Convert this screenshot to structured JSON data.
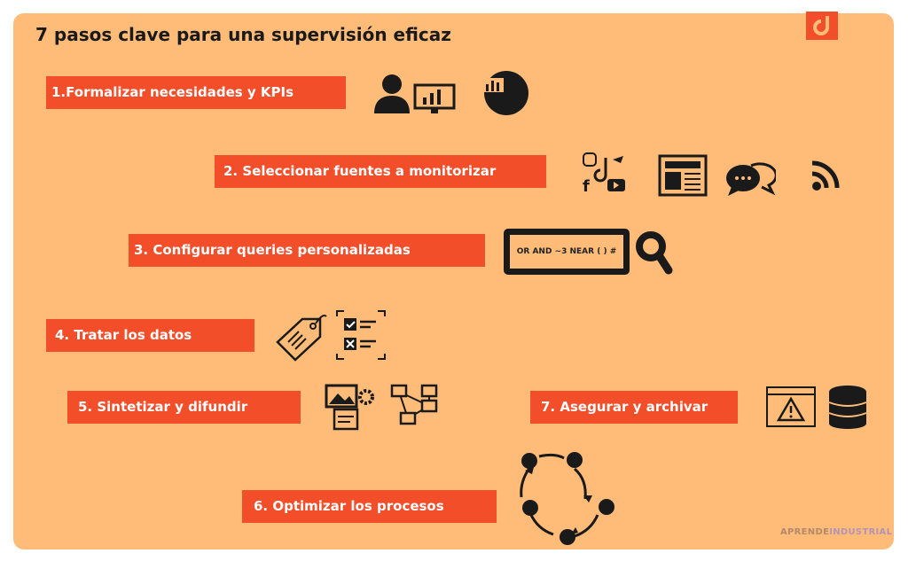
{
  "title": "7 pasos clave para una supervisión eficaz",
  "steps": [
    {
      "label": "1.Formalizar necesidades y KPIs"
    },
    {
      "label": "2. Seleccionar fuentes a monitorizar"
    },
    {
      "label": "3. Configurar queries personalizadas"
    },
    {
      "label": "4. Tratar los datos"
    },
    {
      "label": "5. Sintetizar y difundir"
    },
    {
      "label": "6. Optimizar los procesos"
    },
    {
      "label": "7. Asegurar y archivar"
    }
  ],
  "query_box": "OR AND ~3  NEAR ( ) #",
  "brand": {
    "part1": "APRENDE",
    "part2": "INDUSTRIAL"
  },
  "colors": {
    "background": "#FFBC78",
    "step": "#F24E2A",
    "icon": "#1a1a1a"
  }
}
